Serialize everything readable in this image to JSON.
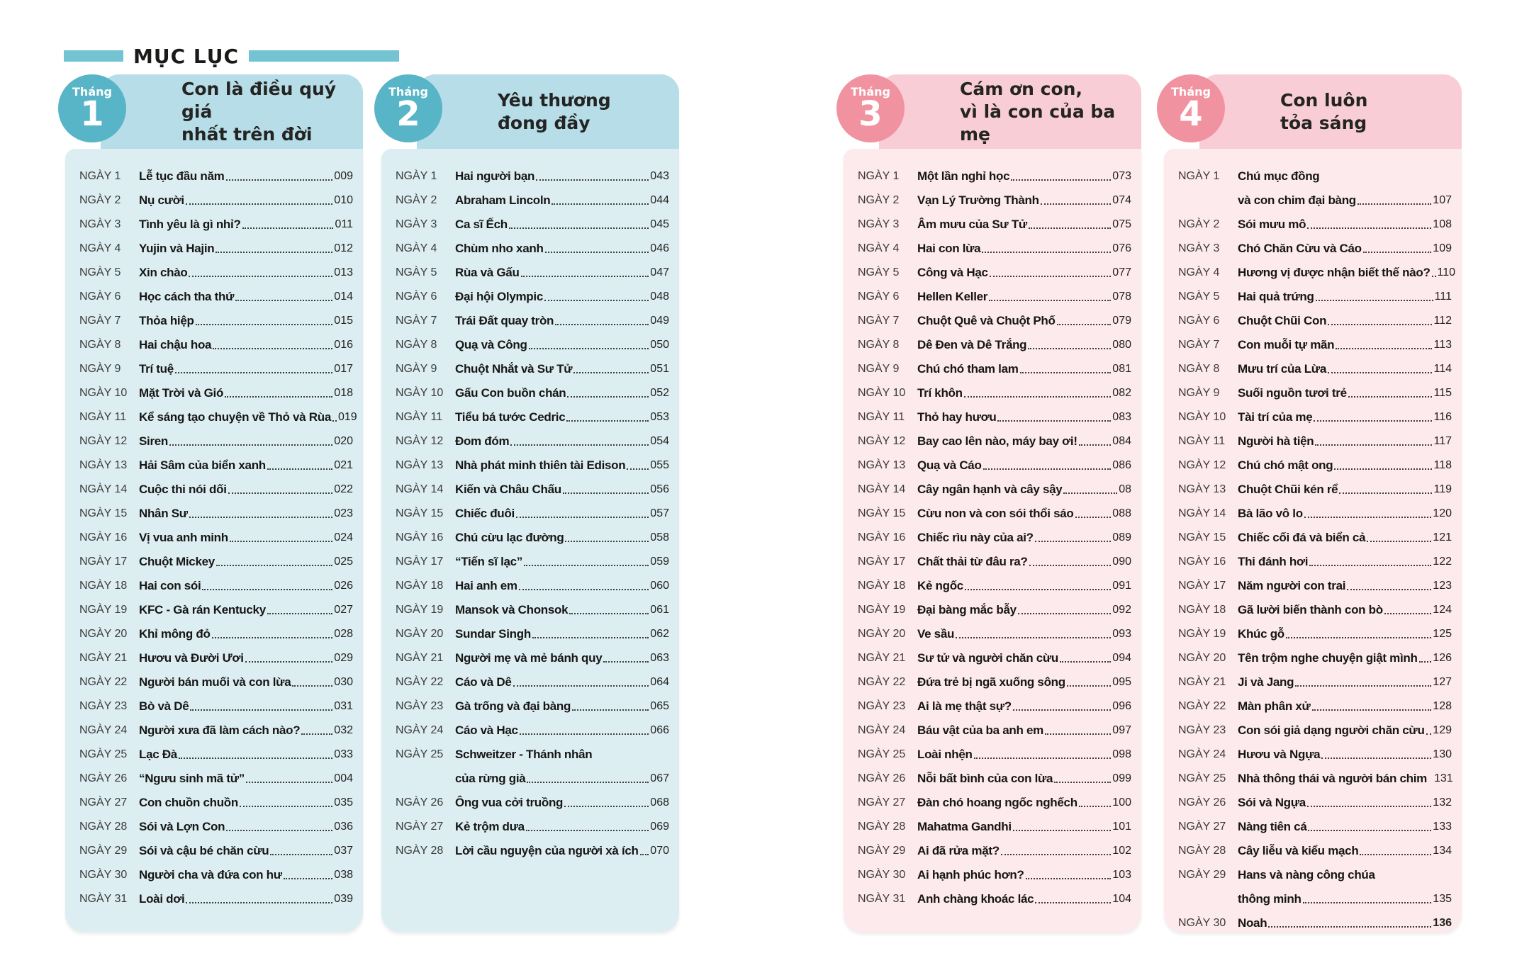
{
  "page_title": "MỤC LỤC",
  "badge_label": "Tháng",
  "colors": {
    "teal-circle": "#58b5c7",
    "teal-band": "#b6dde8",
    "teal-body": "#ddeef3",
    "pink-circle": "#f192a0",
    "pink-band": "#f9cdd6",
    "pink-body": "#fdeaec",
    "header-bar": "#74c3d2",
    "text-dark": "#1d1d1b"
  },
  "months": [
    {
      "number": "1",
      "theme": "teal",
      "title_lines": [
        "Con là điều quý giá",
        "nhất trên đời"
      ],
      "entries": [
        {
          "day": "NGÀY 1",
          "t": "Lễ tục đầu năm",
          "p": "009"
        },
        {
          "day": "NGÀY 2",
          "t": "Nụ cười",
          "p": "010"
        },
        {
          "day": "NGÀY 3",
          "t": "Tình yêu là gì nhỉ?",
          "p": "011"
        },
        {
          "day": "NGÀY 4",
          "t": "Yujin và Hajin",
          "p": "012"
        },
        {
          "day": "NGÀY 5",
          "t": "Xin chào",
          "p": "013"
        },
        {
          "day": "NGÀY 6",
          "t": "Học cách tha thứ",
          "p": "014"
        },
        {
          "day": "NGÀY 7",
          "t": "Thỏa hiệp",
          "p": "015"
        },
        {
          "day": "NGÀY 8",
          "t": "Hai chậu hoa",
          "p": "016"
        },
        {
          "day": "NGÀY 9",
          "t": "Trí tuệ",
          "p": "017"
        },
        {
          "day": "NGÀY 10",
          "t": "Mặt Trời và Gió",
          "p": "018"
        },
        {
          "day": "NGÀY 11",
          "t": "Kể sáng tạo chuyện về Thỏ và Rùa",
          "p": "019"
        },
        {
          "day": "NGÀY 12",
          "t": "Siren",
          "p": "020"
        },
        {
          "day": "NGÀY 13",
          "t": "Hải Sâm của biển xanh",
          "p": "021"
        },
        {
          "day": "NGÀY 14",
          "t": "Cuộc thi nói dối",
          "p": "022"
        },
        {
          "day": "NGÀY 15",
          "t": "Nhân Sư",
          "p": "023"
        },
        {
          "day": "NGÀY 16",
          "t": "Vị vua anh minh",
          "p": "024"
        },
        {
          "day": "NGÀY 17",
          "t": "Chuột Mickey",
          "p": "025"
        },
        {
          "day": "NGÀY 18",
          "t": "Hai con sói",
          "p": "026"
        },
        {
          "day": "NGÀY 19",
          "t": "KFC - Gà rán Kentucky",
          "p": "027"
        },
        {
          "day": "NGÀY 20",
          "t": "Khỉ mông đỏ",
          "p": "028"
        },
        {
          "day": "NGÀY 21",
          "t": "Hươu và Đười Ươi",
          "p": "029"
        },
        {
          "day": "NGÀY 22",
          "t": "Người bán muối và con lừa",
          "p": "030"
        },
        {
          "day": "NGÀY 23",
          "t": "Bò và Dê",
          "p": "031"
        },
        {
          "day": "NGÀY 24",
          "t": "Người xưa đã làm cách nào?",
          "p": "032"
        },
        {
          "day": "NGÀY 25",
          "t": "Lạc Đà",
          "p": "033"
        },
        {
          "day": "NGÀY 26",
          "t": "“Ngưu sinh mã tử”",
          "p": "004"
        },
        {
          "day": "NGÀY 27",
          "t": "Con chuồn chuồn",
          "p": "035"
        },
        {
          "day": "NGÀY 28",
          "t": "Sói và Lợn Con",
          "p": "036"
        },
        {
          "day": "NGÀY 29",
          "t": "Sói và cậu bé chăn cừu",
          "p": "037"
        },
        {
          "day": "NGÀY 30",
          "t": "Người cha và đứa con hư",
          "p": "038"
        },
        {
          "day": "NGÀY 31",
          "t": "Loài dơi",
          "p": "039"
        }
      ]
    },
    {
      "number": "2",
      "theme": "teal",
      "title_lines": [
        "Yêu thương",
        "đong đầy"
      ],
      "entries": [
        {
          "day": "NGÀY 1",
          "t": "Hai người bạn",
          "p": "043"
        },
        {
          "day": "NGÀY 2",
          "t": "Abraham Lincoln",
          "p": "044"
        },
        {
          "day": "NGÀY 3",
          "t": "Ca sĩ Ếch",
          "p": "045"
        },
        {
          "day": "NGÀY 4",
          "t": "Chùm nho xanh",
          "p": "046"
        },
        {
          "day": "NGÀY 5",
          "t": "Rùa và Gấu",
          "p": "047"
        },
        {
          "day": "NGÀY 6",
          "t": "Đại hội Olympic",
          "p": "048"
        },
        {
          "day": "NGÀY 7",
          "t": "Trái Đất quay tròn",
          "p": "049"
        },
        {
          "day": "NGÀY 8",
          "t": "Quạ và Công",
          "p": "050"
        },
        {
          "day": "NGÀY 9",
          "t": "Chuột Nhắt và Sư Tử",
          "p": "051"
        },
        {
          "day": "NGÀY 10",
          "t": "Gấu Con buồn chán",
          "p": "052"
        },
        {
          "day": "NGÀY 11",
          "t": "Tiểu bá tước Cedric",
          "p": "053"
        },
        {
          "day": "NGÀY 12",
          "t": "Đom đóm",
          "p": "054"
        },
        {
          "day": "NGÀY 13",
          "t": "Nhà phát minh thiên tài Edison",
          "p": "055"
        },
        {
          "day": "NGÀY 14",
          "t": "Kiến và Châu Chấu",
          "p": "056"
        },
        {
          "day": "NGÀY 15",
          "t": "Chiếc đuôi",
          "p": "057"
        },
        {
          "day": "NGÀY 16",
          "t": "Chú cừu lạc đường",
          "p": "058"
        },
        {
          "day": "NGÀY 17",
          "t": "“Tiến sĩ lạc”",
          "p": "059"
        },
        {
          "day": "NGÀY 18",
          "t": "Hai anh em",
          "p": "060"
        },
        {
          "day": "NGÀY 19",
          "t": "Mansok và Chonsok",
          "p": "061"
        },
        {
          "day": "NGÀY 20",
          "t": "Sundar Singh",
          "p": "062"
        },
        {
          "day": "NGÀY 21",
          "t": "Người mẹ và mẻ bánh quy",
          "p": "063"
        },
        {
          "day": "NGÀY 22",
          "t": "Cáo và Dê",
          "p": "064"
        },
        {
          "day": "NGÀY 23",
          "t": "Gà trống và đại bàng",
          "p": "065"
        },
        {
          "day": "NGÀY 24",
          "t": "Cáo và Hạc",
          "p": "066"
        },
        {
          "day": "NGÀY 25",
          "t": "Schweitzer - Thánh nhân",
          "t2": "của rừng già",
          "p": "067"
        },
        {
          "day": "NGÀY 26",
          "t": "Ông vua cởi truồng",
          "p": "068"
        },
        {
          "day": "NGÀY 27",
          "t": "Kẻ trộm dưa",
          "p": "069"
        },
        {
          "day": "NGÀY 28",
          "t": "Lời cầu nguyện của người xà ích",
          "p": "070"
        }
      ]
    },
    {
      "number": "3",
      "theme": "pink",
      "title_lines": [
        "Cám ơn con,",
        "vì là con của ba mẹ"
      ],
      "entries": [
        {
          "day": "NGÀY 1",
          "t": "Một lần nghỉ học",
          "p": "073"
        },
        {
          "day": "NGÀY 2",
          "t": "Vạn Lý Trường Thành",
          "p": "074"
        },
        {
          "day": "NGÀY 3",
          "t": "Âm mưu của Sư Tử",
          "p": "075"
        },
        {
          "day": "NGÀY 4",
          "t": "Hai con lừa",
          "p": "076"
        },
        {
          "day": "NGÀY 5",
          "t": "Công và Hạc",
          "p": "077"
        },
        {
          "day": "NGÀY 6",
          "t": "Hellen Keller",
          "p": "078"
        },
        {
          "day": "NGÀY 7",
          "t": "Chuột Quê và Chuột Phố",
          "p": "079"
        },
        {
          "day": "NGÀY 8",
          "t": "Dê Đen và Dê Trắng",
          "p": "080"
        },
        {
          "day": "NGÀY 9",
          "t": "Chú chó tham lam",
          "p": "081"
        },
        {
          "day": "NGÀY 10",
          "t": "Trí khôn",
          "p": "082"
        },
        {
          "day": "NGÀY 11",
          "t": "Thỏ hay hươu",
          "p": "083"
        },
        {
          "day": "NGÀY 12",
          "t": "Bay cao lên nào, máy bay ơi!",
          "p": "084"
        },
        {
          "day": "NGÀY 13",
          "t": "Quạ và Cáo",
          "p": "086"
        },
        {
          "day": "NGÀY 14",
          "t": "Cây ngân hạnh và cây sậy",
          "p": "08"
        },
        {
          "day": "NGÀY 15",
          "t": "Cừu non và con sói thổi sáo",
          "p": "088"
        },
        {
          "day": "NGÀY 16",
          "t": "Chiếc rìu này của ai?",
          "p": "089"
        },
        {
          "day": "NGÀY 17",
          "t": "Chất thải từ đâu ra?",
          "p": "090"
        },
        {
          "day": "NGÀY 18",
          "t": "Kẻ ngốc",
          "p": "091"
        },
        {
          "day": "NGÀY 19",
          "t": "Đại bàng mắc bẫy",
          "p": "092"
        },
        {
          "day": "NGÀY 20",
          "t": "Ve sầu",
          "p": "093"
        },
        {
          "day": "NGÀY 21",
          "t": "Sư tử và người chăn cừu",
          "p": "094"
        },
        {
          "day": "NGÀY 22",
          "t": "Đứa trẻ bị ngã xuống sông",
          "p": "095"
        },
        {
          "day": "NGÀY 23",
          "t": "Ai là mẹ thật sự?",
          "p": "096"
        },
        {
          "day": "NGÀY 24",
          "t": "Báu vật của ba anh em",
          "p": "097"
        },
        {
          "day": "NGÀY 25",
          "t": "Loài nhện",
          "p": "098"
        },
        {
          "day": "NGÀY 26",
          "t": "Nỗi bất bình của con lừa",
          "p": "099"
        },
        {
          "day": "NGÀY 27",
          "t": "Đàn chó hoang ngốc nghếch",
          "p": "100"
        },
        {
          "day": "NGÀY 28",
          "t": "Mahatma Gandhi",
          "p": "101"
        },
        {
          "day": "NGÀY 29",
          "t": "Ai đã rửa mặt?",
          "p": "102"
        },
        {
          "day": "NGÀY 30",
          "t": "Ai hạnh phúc hơn?",
          "p": "103"
        },
        {
          "day": "NGÀY 31",
          "t": "Anh chàng khoác lác",
          "p": "104"
        }
      ]
    },
    {
      "number": "4",
      "theme": "pink",
      "title_lines": [
        "Con luôn",
        "tỏa sáng"
      ],
      "entries": [
        {
          "day": "NGÀY 1",
          "t": "Chú mục đồng",
          "t2": "và con chim đại bàng",
          "p": "107"
        },
        {
          "day": "NGÀY 2",
          "t": "Sói mưu mô",
          "p": "108"
        },
        {
          "day": "NGÀY 3",
          "t": "Chó Chăn Cừu và Cáo",
          "p": "109"
        },
        {
          "day": "NGÀY 4",
          "t": "Hương vị được nhận biết thế nào?",
          "p": "110"
        },
        {
          "day": "NGÀY 5",
          "t": "Hai quả trứng",
          "p": "111"
        },
        {
          "day": "NGÀY 6",
          "t": "Chuột Chũi Con",
          "p": "112"
        },
        {
          "day": "NGÀY 7",
          "t": "Con muỗi tự mãn",
          "p": "113"
        },
        {
          "day": "NGÀY 8",
          "t": "Mưu trí của Lừa",
          "p": "114"
        },
        {
          "day": "NGÀY 9",
          "t": "Suối nguồn tươi trẻ",
          "p": "115"
        },
        {
          "day": "NGÀY 10",
          "t": "Tài trí của mẹ",
          "p": "116"
        },
        {
          "day": "NGÀY 11",
          "t": "Người hà tiện",
          "p": "117"
        },
        {
          "day": "NGÀY 12",
          "t": "Chú chó mật ong",
          "p": "118"
        },
        {
          "day": "NGÀY 13",
          "t": "Chuột Chũi kén rể",
          "p": "119"
        },
        {
          "day": "NGÀY 14",
          "t": "Bà lão vô lo",
          "p": "120"
        },
        {
          "day": "NGÀY 15",
          "t": "Chiếc cối đá và biển cả",
          "p": "121"
        },
        {
          "day": "NGÀY 16",
          "t": "Thi đánh hơi",
          "p": "122"
        },
        {
          "day": "NGÀY 17",
          "t": "Năm người con trai",
          "p": "123"
        },
        {
          "day": "NGÀY 18",
          "t": "Gã lười biến thành con bò",
          "p": "124"
        },
        {
          "day": "NGÀY 19",
          "t": "Khúc gỗ",
          "p": "125"
        },
        {
          "day": "NGÀY 20",
          "t": "Tên trộm nghe chuyện giật mình",
          "p": "126"
        },
        {
          "day": "NGÀY 21",
          "t": "Ji và Jang",
          "p": "127"
        },
        {
          "day": "NGÀY 22",
          "t": "Màn phân xử",
          "p": "128"
        },
        {
          "day": "NGÀY 23",
          "t": "Con sói giả dạng người chăn cừu",
          "p": "129"
        },
        {
          "day": "NGÀY 24",
          "t": "Hươu và Ngựa",
          "p": "130"
        },
        {
          "day": "NGÀY 25",
          "t": "Nhà thông thái và người bán chim",
          "p": "131",
          "nd": true
        },
        {
          "day": "NGÀY 26",
          "t": "Sói và Ngựa",
          "p": "132"
        },
        {
          "day": "NGÀY 27",
          "t": "Nàng tiên cá",
          "p": "133"
        },
        {
          "day": "NGÀY 28",
          "t": "Cây liễu và kiểu mạch",
          "p": "134"
        },
        {
          "day": "NGÀY 29",
          "t": "Hans và nàng công chúa",
          "t2": "thông minh",
          "p": "135"
        },
        {
          "day": "NGÀY 30",
          "t": "Noah",
          "p": "136",
          "bp": true
        }
      ]
    }
  ]
}
